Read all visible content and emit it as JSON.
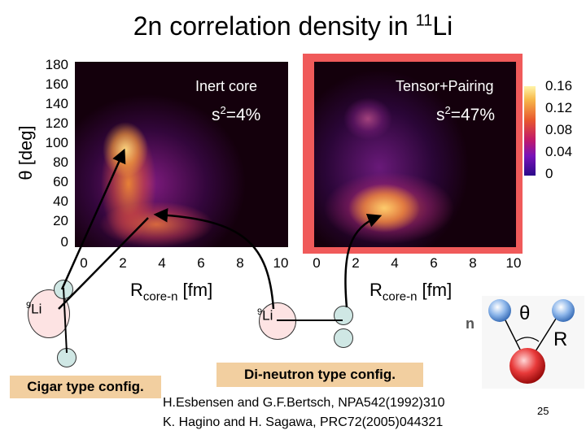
{
  "title": {
    "text": "2n correlation density in ",
    "isotope_mass": "11",
    "isotope_symbol": "Li"
  },
  "left_panel": {
    "label": "Inert core",
    "s2_prefix": "s",
    "s2_sup": "2",
    "s2_value": "=4%"
  },
  "right_panel": {
    "label": "Tensor+Pairing",
    "s2_prefix": "s",
    "s2_sup": "2",
    "s2_value": "=47%"
  },
  "y_axis": {
    "title": "θ [deg]",
    "ticks": [
      "180",
      "160",
      "140",
      "120",
      "100",
      "80",
      "60",
      "40",
      "20",
      "0"
    ]
  },
  "x_axis_left": {
    "ticks": [
      "0",
      "2",
      "4",
      "6",
      "8",
      "10"
    ],
    "title_main": "R",
    "title_sub": "core-n",
    "title_unit": " [fm]"
  },
  "x_axis_right": {
    "ticks": [
      "0",
      "2",
      "4",
      "6",
      "8",
      "10"
    ],
    "title_main": "R",
    "title_sub": "core-n",
    "title_unit": " [fm]"
  },
  "colorbar": {
    "ticks": [
      "0.16",
      "0.12",
      "0.08",
      "0.04",
      "0"
    ]
  },
  "cigar": {
    "core_mass": "9",
    "core_symbol": "Li",
    "caption": "Cigar type config."
  },
  "dineutron": {
    "core_mass": "9",
    "core_symbol": "Li",
    "caption": "Di-neutron type config."
  },
  "schematic": {
    "n_label": "n",
    "theta_label": "θ",
    "r_label": "R"
  },
  "references": [
    "H.Esbensen and G.F.Bertsch, NPA542(1992)310",
    "K. Hagino and H. Sagawa, PRC72(2005)044321"
  ],
  "page_number": "25",
  "colors": {
    "highlight_frame": "#f05a5a",
    "plot_dark": "#1a0010",
    "caption_bg": "#f2cfa0"
  },
  "chart_data": {
    "type": "heatmap",
    "x_range": [
      0,
      10
    ],
    "y_range": [
      0,
      180
    ],
    "colorbar_range": [
      0,
      0.16
    ],
    "panels": [
      "Inert core",
      "Tensor+Pairing"
    ]
  }
}
